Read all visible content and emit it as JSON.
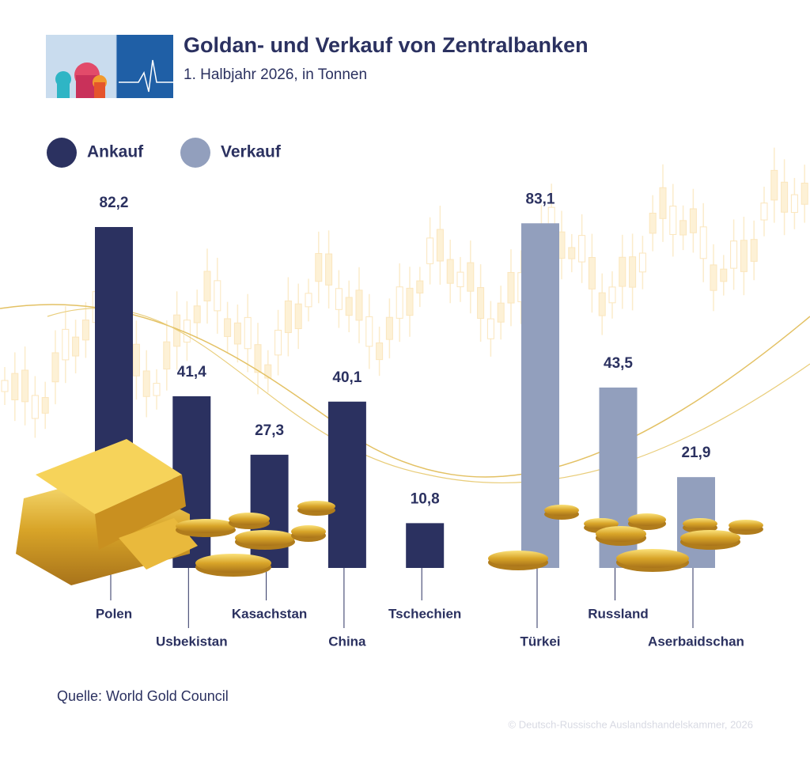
{
  "chart_data": {
    "type": "bar",
    "title": "Goldan- und Verkauf von Zentralbanken",
    "subtitle": "1. Halbjahr 2026, in Tonnen",
    "categories": [
      "Polen",
      "Usbekistan",
      "Kasachstan",
      "China",
      "Tschechien",
      "Türkei",
      "Russland",
      "Aserbaidschan"
    ],
    "series": [
      {
        "name": "Ankauf",
        "color": "#2b3160",
        "values": [
          82.2,
          41.4,
          27.3,
          40.1,
          10.8,
          null,
          null,
          null
        ],
        "value_labels": [
          "82,2",
          "41,4",
          "27,3",
          "40,1",
          "10,8",
          null,
          null,
          null
        ]
      },
      {
        "name": "Verkauf",
        "color": "#929fbd",
        "values": [
          null,
          null,
          null,
          null,
          null,
          83.1,
          43.5,
          21.9
        ],
        "value_labels": [
          null,
          null,
          null,
          null,
          null,
          "83,1",
          "43,5",
          "21,9"
        ]
      }
    ],
    "source": "Quelle: World Gold Council",
    "credit": "© Deutsch-Russische Auslandshandelskammer, 2026"
  }
}
